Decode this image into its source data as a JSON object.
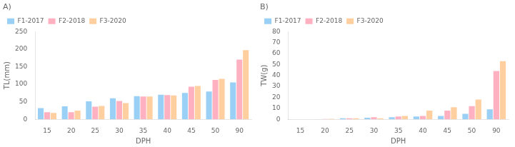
{
  "chart_data": [
    {
      "type": "bar",
      "title": "A)",
      "xlabel": "DPH",
      "ylabel": "TL(mm)",
      "categories": [
        15,
        20,
        25,
        30,
        35,
        40,
        45,
        50,
        90
      ],
      "series": [
        {
          "name": "F1-2017",
          "values": [
            32,
            37,
            51,
            60,
            66,
            70,
            75,
            79,
            105
          ]
        },
        {
          "name": "F2-2018",
          "values": [
            20,
            20,
            36,
            52,
            65,
            69,
            93,
            112,
            170
          ]
        },
        {
          "name": "F3-2020",
          "values": [
            18,
            25,
            38,
            46,
            65,
            68,
            95,
            115,
            197
          ]
        }
      ],
      "ylim": [
        0,
        250
      ],
      "yticks": [
        0,
        50,
        100,
        150,
        200,
        250
      ],
      "grid": false,
      "legend": "upper left"
    },
    {
      "type": "bar",
      "title": "B)",
      "xlabel": "DPH",
      "ylabel": "TW(g)",
      "categories": [
        15,
        20,
        25,
        30,
        35,
        40,
        45,
        50,
        90
      ],
      "series": [
        {
          "name": "F1-2017",
          "values": [
            0.0,
            0.2,
            1.0,
            1.5,
            2.0,
            2.5,
            3.0,
            5.0,
            9.0
          ]
        },
        {
          "name": "F2-2018",
          "values": [
            0.0,
            0.3,
            1.0,
            2.0,
            2.5,
            3.0,
            8.0,
            12.0,
            44.0
          ]
        },
        {
          "name": "F3-2020",
          "values": [
            0.0,
            0.5,
            1.0,
            1.0,
            3.0,
            8.0,
            11.0,
            18.0,
            53.0
          ]
        }
      ],
      "ylim": [
        0,
        80
      ],
      "yticks": [
        0,
        10,
        20,
        30,
        40,
        50,
        60,
        70,
        80
      ],
      "grid": false,
      "legend": "upper left"
    }
  ]
}
